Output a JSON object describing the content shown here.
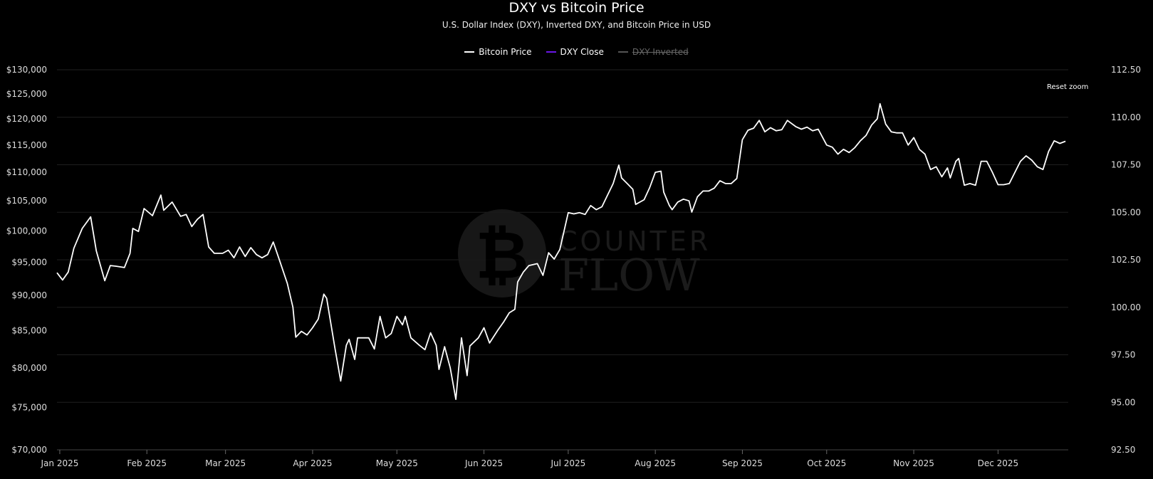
{
  "colors": {
    "background": "#000000",
    "bitcoin": "#ffffff",
    "dxy": "#6a16e8",
    "dxy_inverted": "#555555",
    "grid": "#1f1f1f",
    "watermark": "#2a2a2a"
  },
  "reset_zoom_label": "Reset zoom",
  "watermark": {
    "line1": "COUNTER",
    "line2": "FLOW"
  },
  "chart_data": {
    "type": "line",
    "title": "DXY vs Bitcoin Price",
    "subtitle": "U.S. Dollar Index (DXY), Inverted DXY, and Bitcoin Price in USD",
    "legend_position": "top-center",
    "grid": true,
    "y_left": {
      "scale": "log",
      "range": [
        70000,
        130000
      ],
      "ticks": [
        70000,
        75000,
        80000,
        85000,
        90000,
        95000,
        100000,
        105000,
        110000,
        115000,
        120000,
        125000,
        130000
      ],
      "tick_labels": [
        "$70,000",
        "$75,000",
        "$80,000",
        "$85,000",
        "$90,000",
        "$95,000",
        "$100,000",
        "$105,000",
        "$110,000",
        "$115,000",
        "$120,000",
        "$125,000",
        "$130,000"
      ]
    },
    "y_right": {
      "range": [
        92.5,
        112.5
      ],
      "ticks": [
        92.5,
        95,
        97.5,
        100,
        102.5,
        105,
        107.5,
        110,
        112.5
      ],
      "tick_labels": [
        "92.50",
        "95.00",
        "97.50",
        "100.00",
        "102.50",
        "105.00",
        "107.50",
        "110.00",
        "112.50"
      ]
    },
    "x_range": [
      "2024-12-31",
      "2025-12-26"
    ],
    "x_ticks": [
      "2025-01-01",
      "2025-02-01",
      "2025-03-01",
      "2025-04-01",
      "2025-05-01",
      "2025-06-01",
      "2025-07-01",
      "2025-08-01",
      "2025-09-01",
      "2025-10-01",
      "2025-11-01",
      "2025-12-01"
    ],
    "x_tick_labels": [
      "Jan 2025",
      "Feb 2025",
      "Mar 2025",
      "Apr 2025",
      "May 2025",
      "Jun 2025",
      "Jul 2025",
      "Aug 2025",
      "Sep 2025",
      "Oct 2025",
      "Nov 2025",
      "Dec 2025"
    ],
    "series": [
      {
        "name": "Bitcoin Price",
        "axis": "left",
        "visible": true,
        "points": [
          [
            "2024-12-31",
            93400
          ],
          [
            "2025-01-02",
            92300
          ],
          [
            "2025-01-04",
            93500
          ],
          [
            "2025-01-06",
            97200
          ],
          [
            "2025-01-09",
            100400
          ],
          [
            "2025-01-12",
            102300
          ],
          [
            "2025-01-14",
            96800
          ],
          [
            "2025-01-17",
            92200
          ],
          [
            "2025-01-19",
            94500
          ],
          [
            "2025-01-21",
            94400
          ],
          [
            "2025-01-24",
            94200
          ],
          [
            "2025-01-26",
            96400
          ],
          [
            "2025-01-27",
            100400
          ],
          [
            "2025-01-29",
            99900
          ],
          [
            "2025-01-31",
            103700
          ],
          [
            "2025-02-03",
            102500
          ],
          [
            "2025-02-06",
            106000
          ],
          [
            "2025-02-07",
            103400
          ],
          [
            "2025-02-10",
            104800
          ],
          [
            "2025-02-13",
            102400
          ],
          [
            "2025-02-15",
            102700
          ],
          [
            "2025-02-17",
            100700
          ],
          [
            "2025-02-19",
            101900
          ],
          [
            "2025-02-21",
            102700
          ],
          [
            "2025-02-23",
            97400
          ],
          [
            "2025-02-25",
            96400
          ],
          [
            "2025-02-28",
            96400
          ],
          [
            "2025-03-02",
            96900
          ],
          [
            "2025-03-04",
            95700
          ],
          [
            "2025-03-06",
            97400
          ],
          [
            "2025-03-08",
            95900
          ],
          [
            "2025-03-10",
            97300
          ],
          [
            "2025-03-12",
            96200
          ],
          [
            "2025-03-14",
            95700
          ],
          [
            "2025-03-16",
            96200
          ],
          [
            "2025-03-18",
            98200
          ],
          [
            "2025-03-20",
            95600
          ],
          [
            "2025-03-23",
            91800
          ],
          [
            "2025-03-25",
            88300
          ],
          [
            "2025-03-26",
            84100
          ],
          [
            "2025-03-28",
            84900
          ],
          [
            "2025-03-30",
            84400
          ],
          [
            "2025-04-01",
            85400
          ],
          [
            "2025-04-03",
            86600
          ],
          [
            "2025-04-05",
            90200
          ],
          [
            "2025-04-06",
            89600
          ],
          [
            "2025-04-09",
            82500
          ],
          [
            "2025-04-11",
            78300
          ],
          [
            "2025-04-13",
            83000
          ],
          [
            "2025-04-14",
            83800
          ],
          [
            "2025-04-16",
            81100
          ],
          [
            "2025-04-17",
            84000
          ],
          [
            "2025-04-19",
            84000
          ],
          [
            "2025-04-21",
            84000
          ],
          [
            "2025-04-23",
            82500
          ],
          [
            "2025-04-25",
            87000
          ],
          [
            "2025-04-27",
            84000
          ],
          [
            "2025-04-29",
            84600
          ],
          [
            "2025-05-01",
            87000
          ],
          [
            "2025-05-03",
            85800
          ],
          [
            "2025-05-04",
            87000
          ],
          [
            "2025-05-06",
            84000
          ],
          [
            "2025-05-09",
            83000
          ],
          [
            "2025-05-11",
            82400
          ],
          [
            "2025-05-13",
            84700
          ],
          [
            "2025-05-15",
            83000
          ],
          [
            "2025-05-16",
            79800
          ],
          [
            "2025-05-18",
            82800
          ],
          [
            "2025-05-20",
            80000
          ],
          [
            "2025-05-22",
            76000
          ],
          [
            "2025-05-24",
            84000
          ],
          [
            "2025-05-26",
            79000
          ],
          [
            "2025-05-27",
            82900
          ],
          [
            "2025-05-30",
            84000
          ],
          [
            "2025-06-01",
            85400
          ],
          [
            "2025-06-03",
            83300
          ],
          [
            "2025-06-06",
            85100
          ],
          [
            "2025-06-08",
            86200
          ],
          [
            "2025-06-10",
            87500
          ],
          [
            "2025-06-12",
            88000
          ],
          [
            "2025-06-13",
            92000
          ],
          [
            "2025-06-15",
            93500
          ],
          [
            "2025-06-17",
            94500
          ],
          [
            "2025-06-20",
            94800
          ],
          [
            "2025-06-22",
            93000
          ],
          [
            "2025-06-24",
            96500
          ],
          [
            "2025-06-26",
            95500
          ],
          [
            "2025-06-28",
            97000
          ],
          [
            "2025-07-01",
            103000
          ],
          [
            "2025-07-03",
            102800
          ],
          [
            "2025-07-05",
            103000
          ],
          [
            "2025-07-07",
            102700
          ],
          [
            "2025-07-09",
            104200
          ],
          [
            "2025-07-11",
            103500
          ],
          [
            "2025-07-13",
            104000
          ],
          [
            "2025-07-15",
            106000
          ],
          [
            "2025-07-17",
            108000
          ],
          [
            "2025-07-19",
            111300
          ],
          [
            "2025-07-20",
            109000
          ],
          [
            "2025-07-22",
            108000
          ],
          [
            "2025-07-24",
            107000
          ],
          [
            "2025-07-25",
            104400
          ],
          [
            "2025-07-28",
            105200
          ],
          [
            "2025-07-30",
            107300
          ],
          [
            "2025-08-01",
            110000
          ],
          [
            "2025-08-03",
            110200
          ],
          [
            "2025-08-04",
            106500
          ],
          [
            "2025-08-06",
            104200
          ],
          [
            "2025-08-07",
            103500
          ],
          [
            "2025-08-09",
            104800
          ],
          [
            "2025-08-11",
            105300
          ],
          [
            "2025-08-13",
            105000
          ],
          [
            "2025-08-14",
            103100
          ],
          [
            "2025-08-16",
            105700
          ],
          [
            "2025-08-18",
            106700
          ],
          [
            "2025-08-20",
            106700
          ],
          [
            "2025-08-22",
            107200
          ],
          [
            "2025-08-24",
            108500
          ],
          [
            "2025-08-26",
            108000
          ],
          [
            "2025-08-28",
            108000
          ],
          [
            "2025-08-30",
            108900
          ],
          [
            "2025-09-01",
            116000
          ],
          [
            "2025-09-03",
            117800
          ],
          [
            "2025-09-05",
            118200
          ],
          [
            "2025-09-07",
            119700
          ],
          [
            "2025-09-09",
            117500
          ],
          [
            "2025-09-11",
            118300
          ],
          [
            "2025-09-13",
            117700
          ],
          [
            "2025-09-15",
            117900
          ],
          [
            "2025-09-17",
            119700
          ],
          [
            "2025-09-20",
            118500
          ],
          [
            "2025-09-22",
            118000
          ],
          [
            "2025-09-24",
            118400
          ],
          [
            "2025-09-26",
            117700
          ],
          [
            "2025-09-28",
            118000
          ],
          [
            "2025-10-01",
            115000
          ],
          [
            "2025-10-03",
            114600
          ],
          [
            "2025-10-05",
            113300
          ],
          [
            "2025-10-07",
            114200
          ],
          [
            "2025-10-09",
            113600
          ],
          [
            "2025-10-11",
            114500
          ],
          [
            "2025-10-13",
            115800
          ],
          [
            "2025-10-15",
            116800
          ],
          [
            "2025-10-17",
            118800
          ],
          [
            "2025-10-19",
            120000
          ],
          [
            "2025-10-20",
            123000
          ],
          [
            "2025-10-22",
            119000
          ],
          [
            "2025-10-24",
            117500
          ],
          [
            "2025-10-26",
            117300
          ],
          [
            "2025-10-28",
            117300
          ],
          [
            "2025-10-30",
            115000
          ],
          [
            "2025-11-01",
            116400
          ],
          [
            "2025-11-03",
            114200
          ],
          [
            "2025-11-05",
            113300
          ],
          [
            "2025-11-07",
            110500
          ],
          [
            "2025-11-09",
            111000
          ],
          [
            "2025-11-11",
            109200
          ],
          [
            "2025-11-13",
            110800
          ],
          [
            "2025-11-14",
            109000
          ],
          [
            "2025-11-16",
            112000
          ],
          [
            "2025-11-17",
            112500
          ],
          [
            "2025-11-19",
            107700
          ],
          [
            "2025-11-21",
            108000
          ],
          [
            "2025-11-23",
            107700
          ],
          [
            "2025-11-25",
            112000
          ],
          [
            "2025-11-27",
            112000
          ],
          [
            "2025-11-29",
            110000
          ],
          [
            "2025-12-01",
            107800
          ],
          [
            "2025-12-03",
            107800
          ],
          [
            "2025-12-05",
            108000
          ],
          [
            "2025-12-07",
            110000
          ],
          [
            "2025-12-09",
            112000
          ],
          [
            "2025-12-11",
            113000
          ],
          [
            "2025-12-13",
            112200
          ],
          [
            "2025-12-15",
            111000
          ],
          [
            "2025-12-17",
            110500
          ],
          [
            "2025-12-19",
            113800
          ],
          [
            "2025-12-21",
            115800
          ],
          [
            "2025-12-23",
            115300
          ],
          [
            "2025-12-25",
            115700
          ]
        ]
      },
      {
        "name": "DXY Close",
        "axis": "right",
        "visible": true,
        "points": []
      },
      {
        "name": "DXY Inverted",
        "axis": "right",
        "visible": false,
        "points": []
      }
    ]
  }
}
